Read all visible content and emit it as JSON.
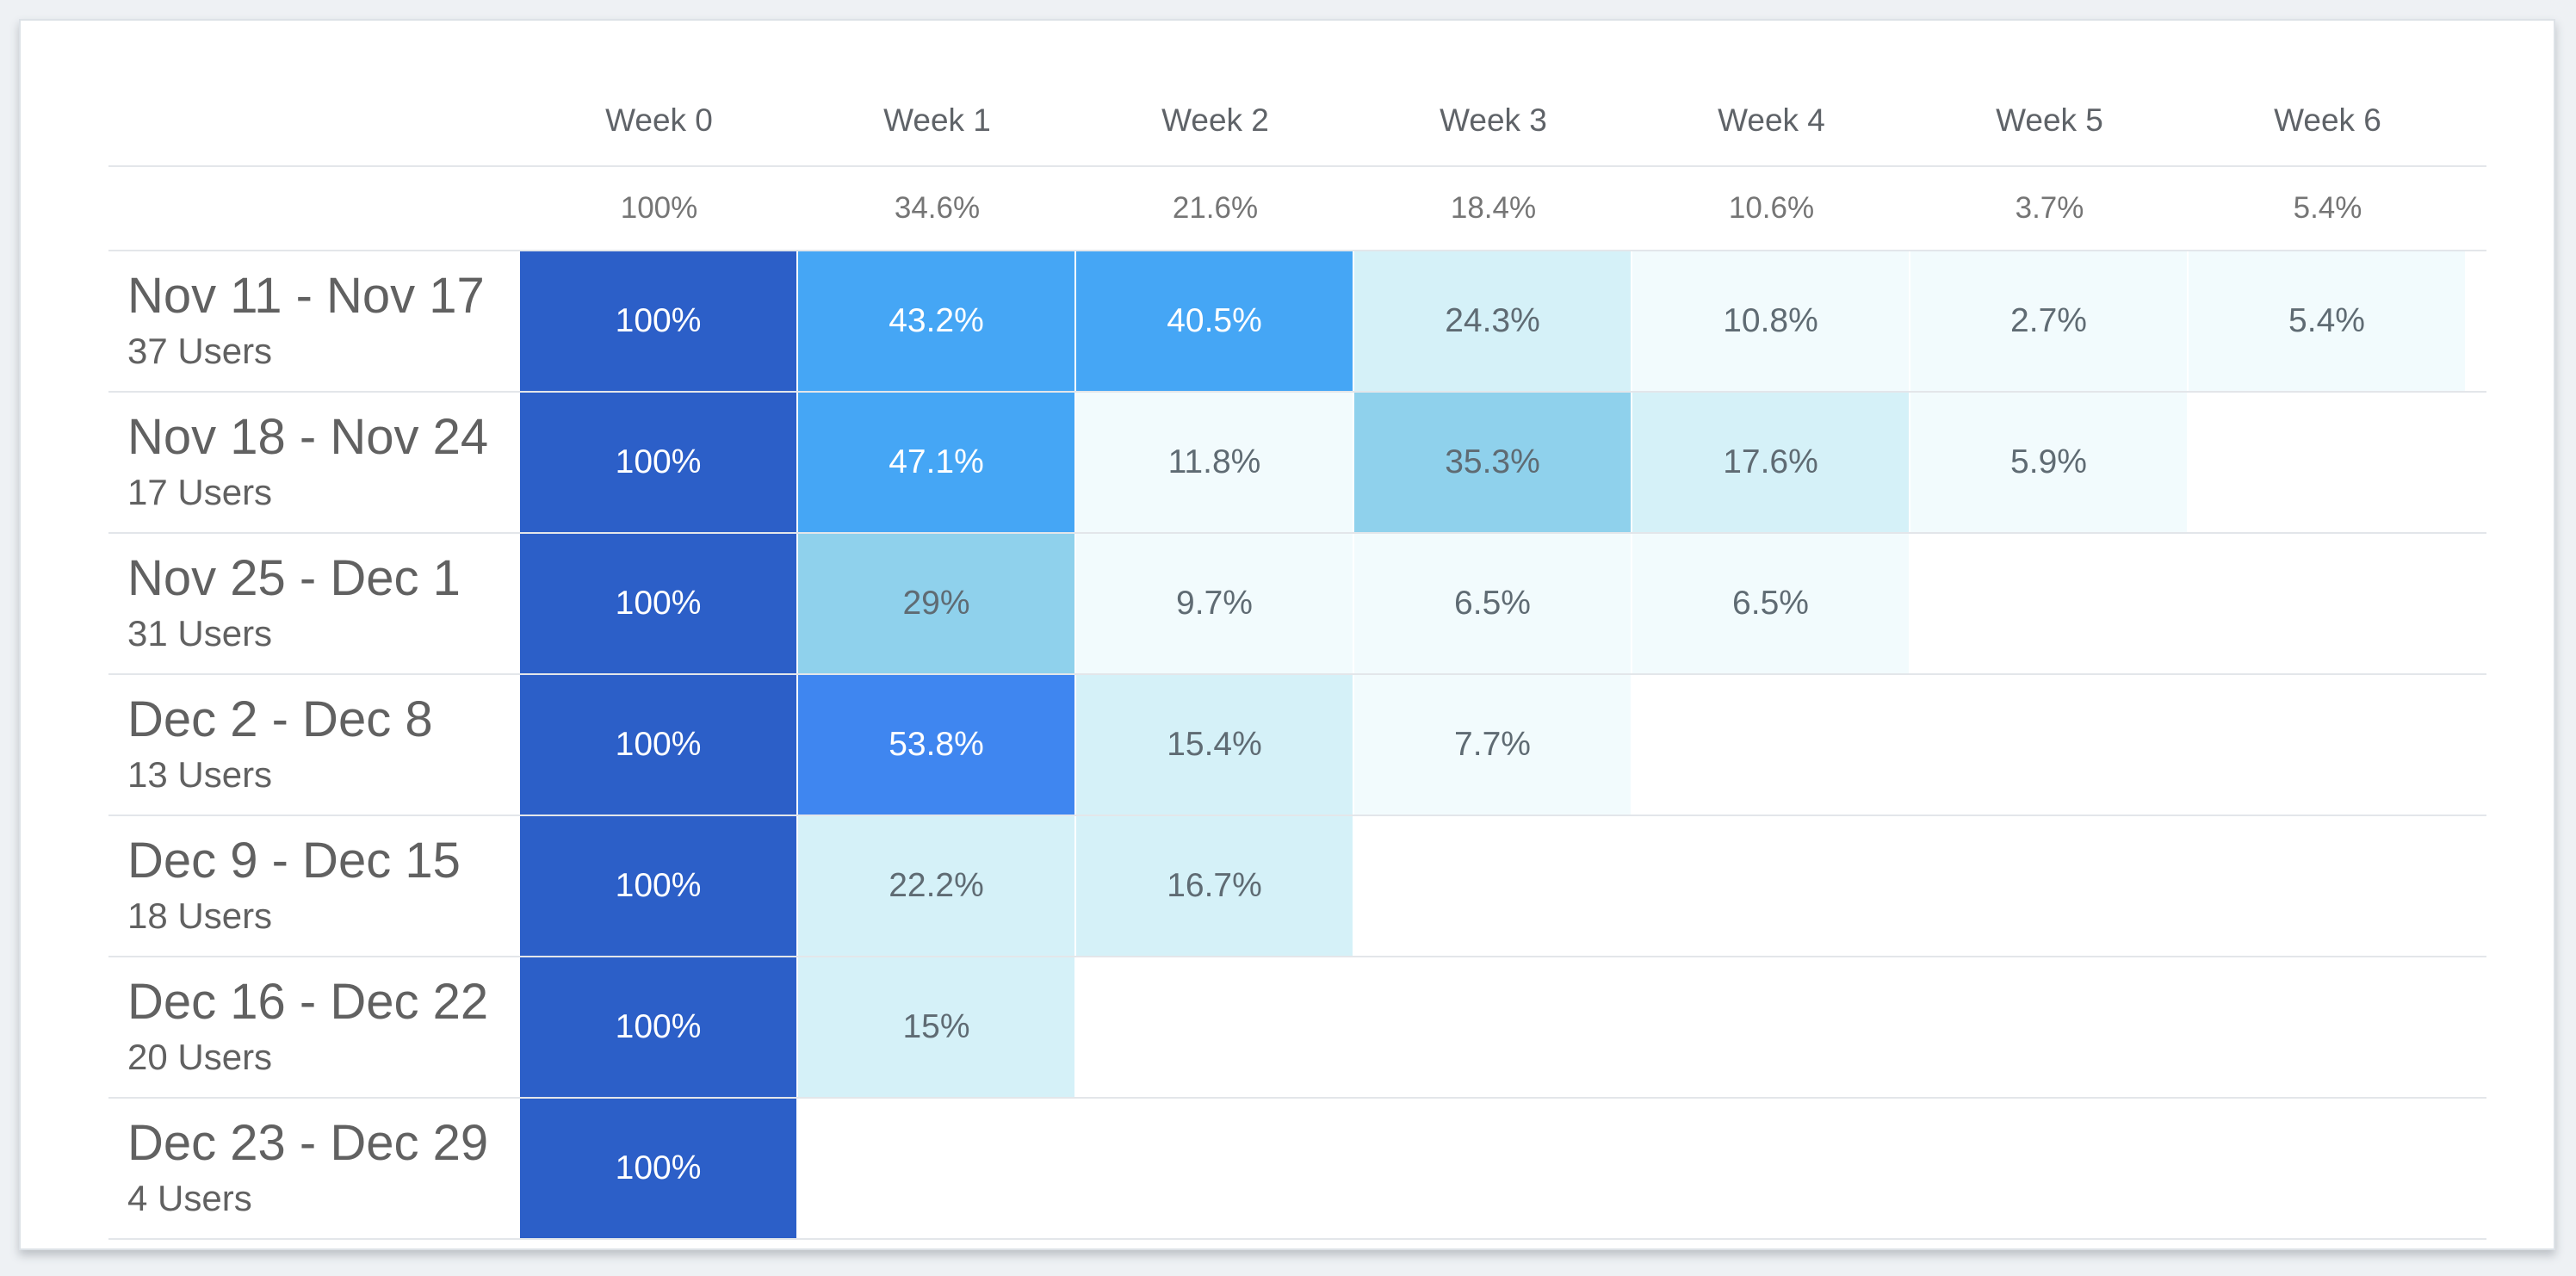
{
  "chart_data": {
    "type": "heatmap",
    "title": "",
    "columns": [
      "Week 0",
      "Week 1",
      "Week 2",
      "Week 3",
      "Week 4",
      "Week 5",
      "Week 6"
    ],
    "totals": [
      "100%",
      "34.6%",
      "21.6%",
      "18.4%",
      "10.6%",
      "3.7%",
      "5.4%"
    ],
    "cohorts": [
      {
        "range": "Nov 11 - Nov 17",
        "users": "37 Users",
        "values": [
          "100%",
          "43.2%",
          "40.5%",
          "24.3%",
          "10.8%",
          "2.7%",
          "5.4%"
        ]
      },
      {
        "range": "Nov 18 - Nov 24",
        "users": "17 Users",
        "values": [
          "100%",
          "47.1%",
          "11.8%",
          "35.3%",
          "17.6%",
          "5.9%"
        ]
      },
      {
        "range": "Nov 25 - Dec 1",
        "users": "31 Users",
        "values": [
          "100%",
          "29%",
          "9.7%",
          "6.5%",
          "6.5%"
        ]
      },
      {
        "range": "Dec 2 - Dec 8",
        "users": "13 Users",
        "values": [
          "100%",
          "53.8%",
          "15.4%",
          "7.7%"
        ]
      },
      {
        "range": "Dec 9 - Dec 15",
        "users": "18 Users",
        "values": [
          "100%",
          "22.2%",
          "16.7%"
        ]
      },
      {
        "range": "Dec 16 - Dec 22",
        "users": "20 Users",
        "values": [
          "100%",
          "15%"
        ]
      },
      {
        "range": "Dec 23 - Dec 29",
        "users": "4 Users",
        "values": [
          "100%"
        ]
      }
    ]
  },
  "colors": {
    "full": "#2c5fc8",
    "high": "#3f86f0",
    "mid_high": "#45a6f5",
    "mid": "#8fd1ec",
    "low_mid": "#d5f1f8",
    "low": "#f2fbfd",
    "text_light": "#ffffff",
    "text_dark": "#5f6b73"
  }
}
